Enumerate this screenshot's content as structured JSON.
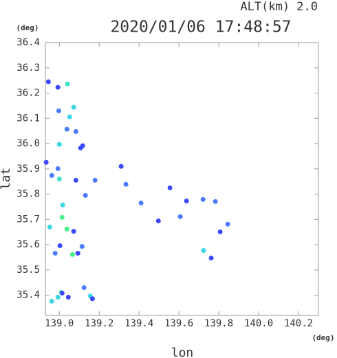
{
  "chart_data": {
    "type": "scatter",
    "title": "2020/01/06 17:48:57",
    "subtitle": "ALT(km) 2.0",
    "y_unit": "(deg)",
    "x_unit": "(deg)",
    "xlabel": "lon",
    "ylabel": "lat",
    "xlim": [
      138.93,
      140.3
    ],
    "ylim": [
      35.32,
      36.4
    ],
    "xticks": [
      {
        "value": 139,
        "label": "139.0"
      },
      139.2,
      139.4,
      139.6,
      139.8,
      {
        "value": 140,
        "label": "140.0"
      },
      140.2
    ],
    "yticks": [
      36.4,
      36.3,
      36.2,
      36.1,
      {
        "value": 36,
        "label": "36.0"
      },
      35.9,
      35.8,
      35.7,
      35.6,
      35.5,
      35.4
    ],
    "x": [
      138.945,
      138.993,
      139.041,
      138.997,
      139.072,
      139.052,
      139.038,
      139.083,
      139.0,
      139.107,
      139.117,
      138.934,
      138.993,
      138.962,
      139.0,
      139.083,
      139.179,
      139.31,
      139.334,
      139.017,
      139.131,
      139.014,
      138.952,
      139.038,
      139.072,
      139.003,
      139.114,
      139.066,
      139.093,
      138.979,
      139.41,
      139.555,
      139.638,
      139.721,
      139.783,
      139.807,
      139.845,
      139.762,
      139.724,
      139.124,
      139.01,
      139.014,
      139.045,
      138.962,
      138.993,
      139.155,
      139.166,
      139.497,
      139.607
    ],
    "values": [
      36.245,
      36.223,
      36.236,
      36.13,
      36.144,
      36.106,
      36.057,
      36.048,
      35.997,
      35.983,
      35.992,
      35.926,
      35.901,
      35.874,
      35.86,
      35.855,
      35.855,
      35.91,
      35.839,
      35.757,
      35.795,
      35.708,
      35.67,
      35.662,
      35.653,
      35.596,
      35.593,
      35.561,
      35.566,
      35.566,
      35.765,
      35.825,
      35.773,
      35.779,
      35.771,
      35.651,
      35.681,
      35.547,
      35.577,
      35.43,
      35.411,
      35.408,
      35.392,
      35.376,
      35.392,
      35.397,
      35.386,
      35.694,
      35.711
    ],
    "colors": [
      "#3b48ff",
      "#3b48ff",
      "#3ce6c8",
      "#4a7cff",
      "#3cd6e6",
      "#3cd6e6",
      "#4a7cff",
      "#4a7cff",
      "#3cd6e6",
      "#3b48ff",
      "#3b48ff",
      "#3b48ff",
      "#4a7cff",
      "#4a7cff",
      "#3ce6c8",
      "#3b48ff",
      "#4a7cff",
      "#3b48ff",
      "#4a7cff",
      "#3cd6e6",
      "#4a7cff",
      "#48f088",
      "#3cd6e6",
      "#48f088",
      "#3b48ff",
      "#3b48ff",
      "#4a7cff",
      "#48f088",
      "#3b48ff",
      "#4a7cff",
      "#4a7cff",
      "#3b48ff",
      "#3b48ff",
      "#4a7cff",
      "#4a7cff",
      "#3b48ff",
      "#4a7cff",
      "#3b48ff",
      "#3cd6e6",
      "#4a7cff",
      "#48f088",
      "#3b48ff",
      "#3b48ff",
      "#3cd6e6",
      "#3cd6e6",
      "#3cd6e6",
      "#3b48ff",
      "#3b48ff",
      "#4a7cff"
    ]
  }
}
